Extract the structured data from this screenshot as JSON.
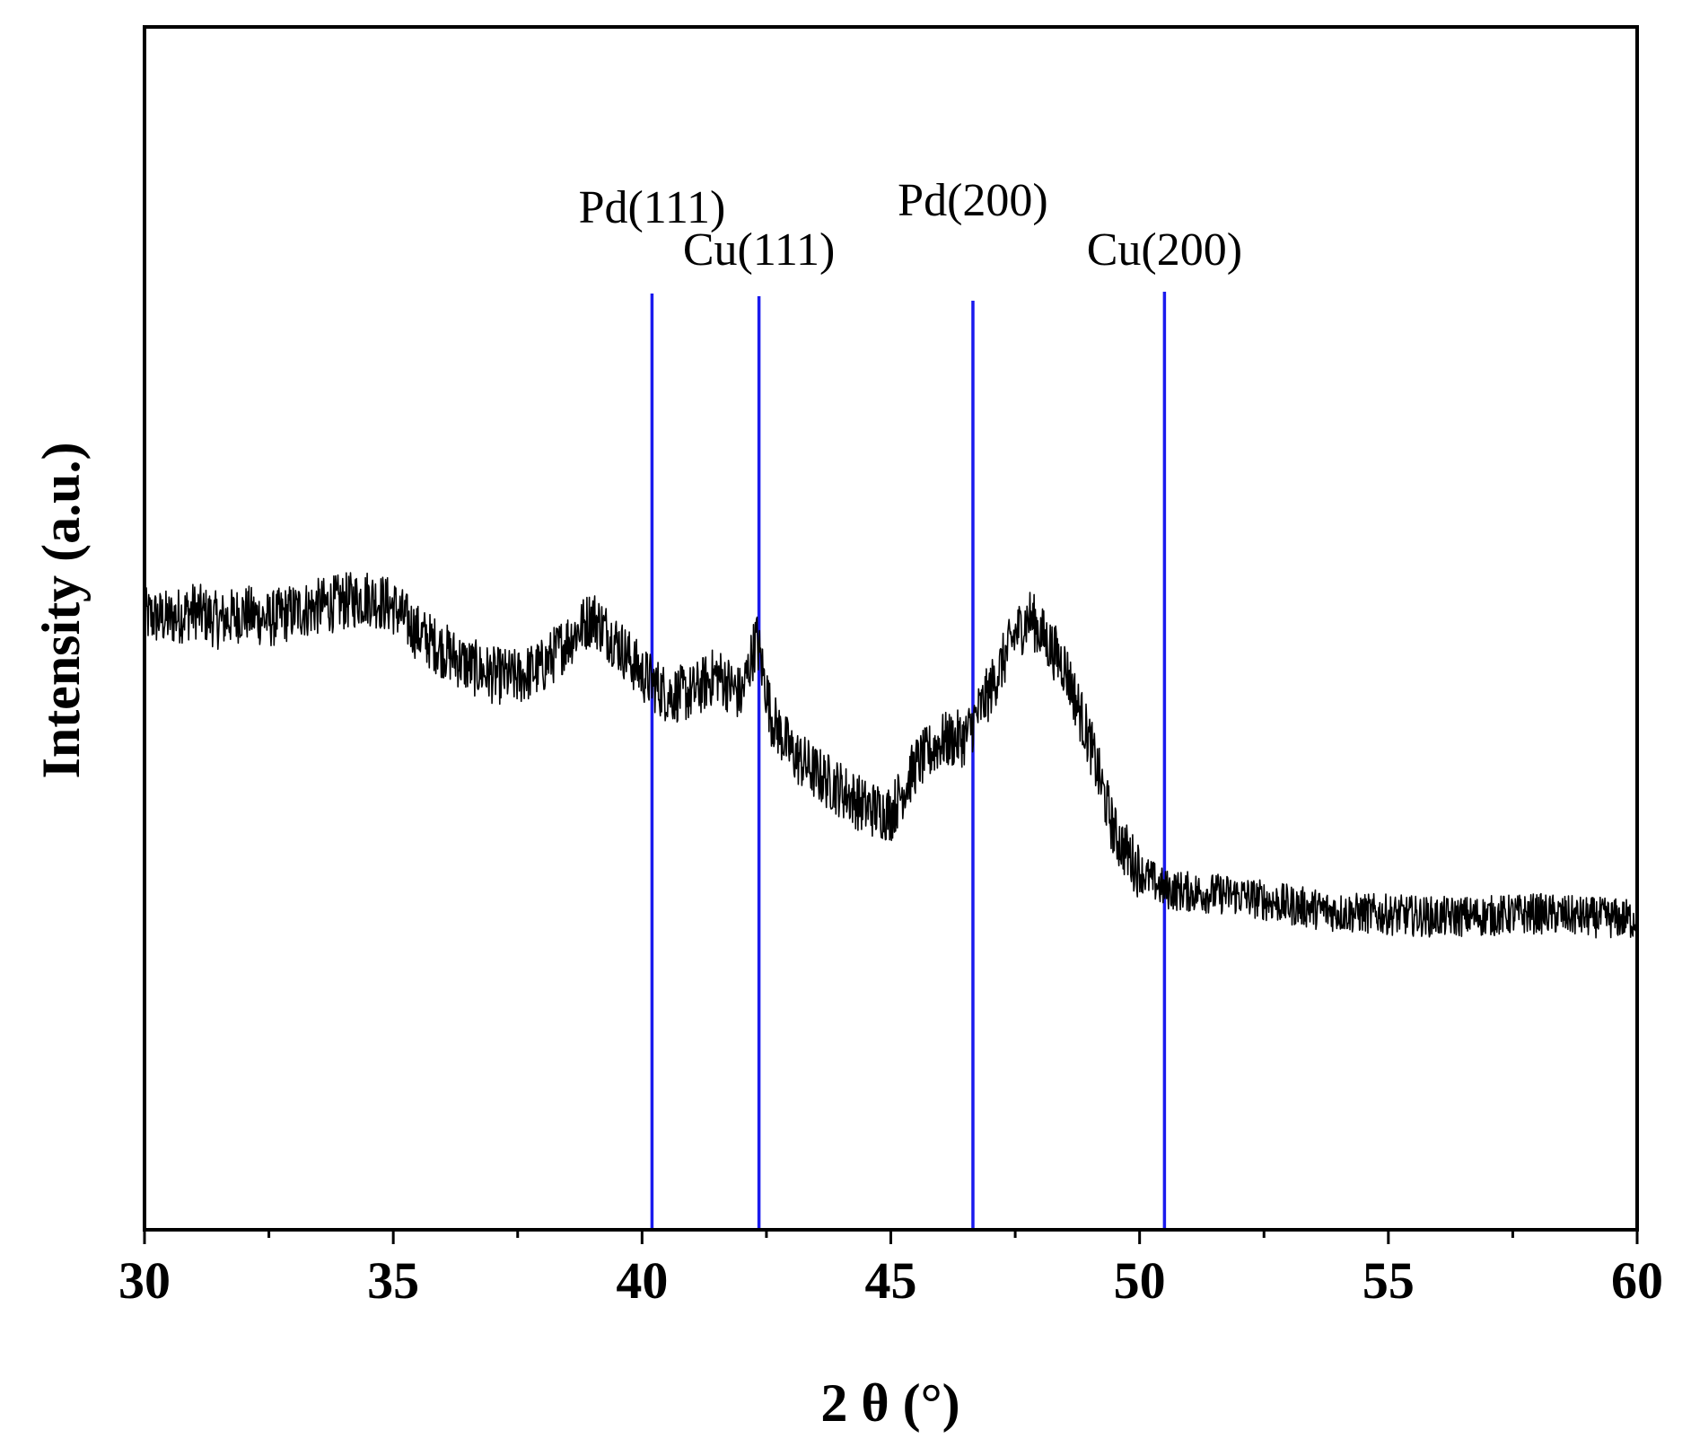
{
  "chart_data": {
    "type": "line",
    "title": "",
    "xlabel": "2 θ (°)",
    "ylabel": "Intensity (a.u.)",
    "xlim": [
      30,
      60
    ],
    "ylim": [
      0,
      100
    ],
    "x_ticks": [
      30,
      35,
      40,
      45,
      50,
      55,
      60
    ],
    "x_tick_labels": [
      "30",
      "35",
      "40",
      "45",
      "50",
      "55",
      "60"
    ],
    "grid": false,
    "y_tick_labels_shown": false,
    "series": [
      {
        "color": "#000000",
        "points": [
          [
            30.0,
            51.0
          ],
          [
            30.5,
            50.8
          ],
          [
            31.0,
            51.5
          ],
          [
            31.5,
            50.6
          ],
          [
            32.0,
            51.3
          ],
          [
            32.5,
            50.7
          ],
          [
            33.0,
            51.4
          ],
          [
            33.5,
            51.8
          ],
          [
            34.0,
            52.2
          ],
          [
            34.5,
            52.6
          ],
          [
            35.0,
            51.8
          ],
          [
            35.5,
            49.6
          ],
          [
            36.0,
            48.2
          ],
          [
            36.5,
            46.9
          ],
          [
            37.0,
            46.1
          ],
          [
            37.5,
            45.9
          ],
          [
            38.0,
            46.8
          ],
          [
            38.5,
            49.0
          ],
          [
            39.0,
            51.0
          ],
          [
            39.5,
            48.8
          ],
          [
            40.0,
            46.2
          ],
          [
            40.5,
            44.5
          ],
          [
            41.0,
            44.6
          ],
          [
            41.5,
            46.2
          ],
          [
            42.0,
            44.4
          ],
          [
            42.3,
            49.2
          ],
          [
            42.6,
            42.6
          ],
          [
            43.0,
            39.7
          ],
          [
            43.5,
            37.9
          ],
          [
            44.0,
            36.6
          ],
          [
            44.5,
            35.1
          ],
          [
            45.0,
            34.6
          ],
          [
            45.5,
            38.6
          ],
          [
            46.0,
            40.6
          ],
          [
            46.5,
            40.9
          ],
          [
            47.0,
            44.9
          ],
          [
            47.5,
            49.5
          ],
          [
            47.8,
            51.0
          ],
          [
            48.0,
            49.7
          ],
          [
            48.5,
            46.8
          ],
          [
            49.0,
            40.5
          ],
          [
            49.5,
            32.9
          ],
          [
            50.0,
            29.8
          ],
          [
            50.5,
            28.3
          ],
          [
            51.0,
            28.1
          ],
          [
            52.0,
            27.8
          ],
          [
            53.0,
            27.0
          ],
          [
            54.0,
            26.4
          ],
          [
            55.0,
            26.2
          ],
          [
            56.0,
            26.0
          ],
          [
            57.0,
            26.1
          ],
          [
            58.0,
            26.3
          ],
          [
            59.0,
            26.0
          ],
          [
            60.0,
            25.8
          ]
        ]
      }
    ],
    "reference_lines": [
      {
        "x": 40.2,
        "label": "Pd(111)",
        "color": "#1a1aee"
      },
      {
        "x": 42.35,
        "label": "Cu(111)",
        "color": "#1a1aee"
      },
      {
        "x": 46.65,
        "label": "Pd(200)",
        "color": "#1a1aee"
      },
      {
        "x": 50.5,
        "label": "Cu(200)",
        "color": "#1a1aee"
      }
    ]
  }
}
